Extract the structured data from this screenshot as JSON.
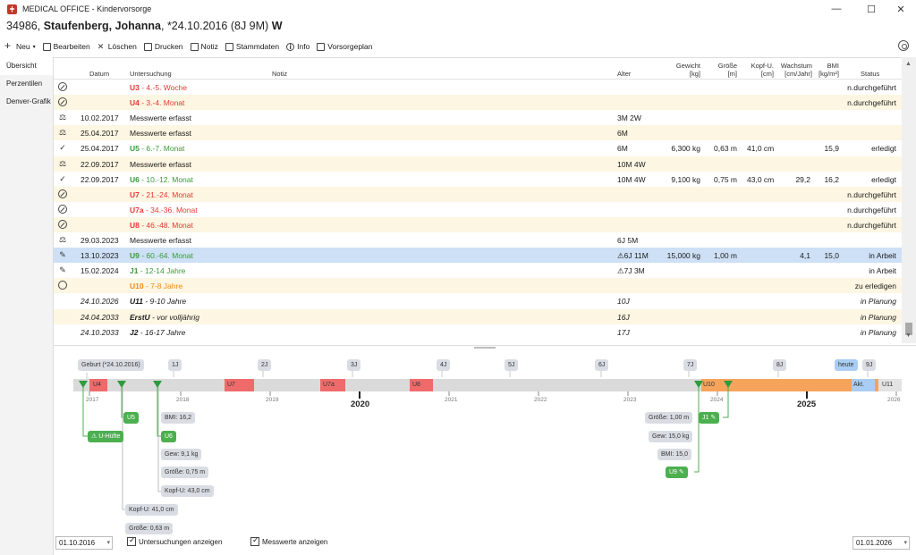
{
  "window": {
    "title": "MEDICAL OFFICE - Kindervorsorge",
    "min": "—",
    "max": "☐",
    "close": "✕"
  },
  "patient": {
    "id": "34986,",
    "name": "Staufenberg, Johanna",
    "dob": ", *24.10.2016 (8J 9M)",
    "sex": "W"
  },
  "toolbar": {
    "neu": "Neu",
    "bearbeiten": "Bearbeiten",
    "loeschen": "Löschen",
    "drucken": "Drucken",
    "notiz": "Notiz",
    "stammdaten": "Stammdaten",
    "info": "Info",
    "vorsorgeplan": "Vorsorgeplan"
  },
  "nav": {
    "uebersicht": "Übersicht",
    "perzentilen": "Perzentilen",
    "denver": "Denver-Grafik"
  },
  "table": {
    "headers": {
      "datum": "Datum",
      "untersuchung": "Untersuchung",
      "notiz": "Notiz",
      "alter": "Alter",
      "gewicht": "Gewicht",
      "gewicht_unit": "[kg]",
      "groesse": "Größe",
      "groesse_unit": "[m]",
      "kopf": "Kopf-U.",
      "kopf_unit": "[cm]",
      "wachstum": "Wachstum",
      "wachstum_unit": "[cm/Jahr]",
      "bmi": "BMI",
      "bmi_unit": "[kg/m²]",
      "status": "Status"
    },
    "rows": [
      {
        "icon": "ban",
        "datum": "",
        "code": "U3",
        "range": " - 4.-5. Woche",
        "color": "red",
        "alter": "",
        "gewicht": "",
        "groesse": "",
        "kopf": "",
        "wachstum": "",
        "bmi": "",
        "status": "n.durchgeführt",
        "alt": false
      },
      {
        "icon": "ban",
        "datum": "",
        "code": "U4",
        "range": " - 3.-4. Monat",
        "color": "red",
        "alter": "",
        "gewicht": "",
        "groesse": "",
        "kopf": "",
        "wachstum": "",
        "bmi": "",
        "status": "n.durchgeführt",
        "alt": true
      },
      {
        "icon": "scale",
        "datum": "10.02.2017",
        "code": "",
        "range": "Messwerte erfasst",
        "color": "",
        "alter": "3M 2W",
        "gewicht": "",
        "groesse": "",
        "kopf": "",
        "wachstum": "",
        "bmi": "",
        "status": "",
        "alt": false
      },
      {
        "icon": "scale",
        "datum": "25.04.2017",
        "code": "",
        "range": "Messwerte erfasst",
        "color": "",
        "alter": "6M",
        "gewicht": "",
        "groesse": "",
        "kopf": "",
        "wachstum": "",
        "bmi": "",
        "status": "",
        "alt": true
      },
      {
        "icon": "check",
        "datum": "25.04.2017",
        "code": "U5",
        "range": " - 6.-7. Monat",
        "color": "green",
        "alter": "6M",
        "gewicht": "6,300 kg",
        "groesse": "0,63 m",
        "kopf": "41,0 cm",
        "wachstum": "",
        "bmi": "15,9",
        "status": "erledigt",
        "alt": false
      },
      {
        "icon": "scale",
        "datum": "22.09.2017",
        "code": "",
        "range": "Messwerte erfasst",
        "color": "",
        "alter": "10M 4W",
        "gewicht": "",
        "groesse": "",
        "kopf": "",
        "wachstum": "",
        "bmi": "",
        "status": "",
        "alt": true
      },
      {
        "icon": "check",
        "datum": "22.09.2017",
        "code": "U6",
        "range": " - 10.-12. Monat",
        "color": "green",
        "alter": "10M 4W",
        "gewicht": "9,100 kg",
        "groesse": "0,75 m",
        "kopf": "43,0 cm",
        "wachstum": "29,2",
        "bmi": "16,2",
        "status": "erledigt",
        "alt": false
      },
      {
        "icon": "ban",
        "datum": "",
        "code": "U7",
        "range": " - 21.-24. Monat",
        "color": "red",
        "alter": "",
        "gewicht": "",
        "groesse": "",
        "kopf": "",
        "wachstum": "",
        "bmi": "",
        "status": "n.durchgeführt",
        "alt": true
      },
      {
        "icon": "ban",
        "datum": "",
        "code": "U7a",
        "range": " - 34.-36. Monat",
        "color": "red",
        "alter": "",
        "gewicht": "",
        "groesse": "",
        "kopf": "",
        "wachstum": "",
        "bmi": "",
        "status": "n.durchgeführt",
        "alt": false
      },
      {
        "icon": "ban",
        "datum": "",
        "code": "U8",
        "range": " - 46.-48. Monat",
        "color": "red",
        "alter": "",
        "gewicht": "",
        "groesse": "",
        "kopf": "",
        "wachstum": "",
        "bmi": "",
        "status": "n.durchgeführt",
        "alt": true
      },
      {
        "icon": "scale",
        "datum": "29.03.2023",
        "code": "",
        "range": "Messwerte erfasst",
        "color": "",
        "alter": "6J 5M",
        "gewicht": "",
        "groesse": "",
        "kopf": "",
        "wachstum": "",
        "bmi": "",
        "status": "",
        "alt": false
      },
      {
        "icon": "edit",
        "datum": "13.10.2023",
        "code": "U9",
        "range": " - 60.-64. Monat",
        "color": "green",
        "alter": "⚠6J 11M",
        "gewicht": "15,000 kg",
        "groesse": "1,00 m",
        "kopf": "",
        "wachstum": "4,1",
        "bmi": "15,0",
        "status": "in Arbeit",
        "alt": false,
        "sel": true
      },
      {
        "icon": "edit",
        "datum": "15.02.2024",
        "code": "J1",
        "range": " - 12-14 Jahre",
        "color": "green",
        "alter": "⚠7J 3M",
        "gewicht": "",
        "groesse": "",
        "kopf": "",
        "wachstum": "",
        "bmi": "",
        "status": "in Arbeit",
        "alt": false
      },
      {
        "icon": "clock",
        "datum": "",
        "code": "U10",
        "range": " - 7-8 Jahre",
        "color": "orange",
        "alter": "",
        "gewicht": "",
        "groesse": "",
        "kopf": "",
        "wachstum": "",
        "bmi": "",
        "status": "zu erledigen",
        "alt": true
      },
      {
        "icon": "",
        "datum": "24.10.2026",
        "code": "U11",
        "range": " - 9-10 Jahre",
        "color": "italic",
        "alter": "10J",
        "gewicht": "",
        "groesse": "",
        "kopf": "",
        "wachstum": "",
        "bmi": "",
        "status": "in Planung",
        "alt": false
      },
      {
        "icon": "",
        "datum": "24.04.2033",
        "code": "ErstU",
        "range": " - vor volljährig",
        "color": "italic",
        "alter": "16J",
        "gewicht": "",
        "groesse": "",
        "kopf": "",
        "wachstum": "",
        "bmi": "",
        "status": "in Planung",
        "alt": true
      },
      {
        "icon": "",
        "datum": "24.10.2033",
        "code": "J2",
        "range": " - 16-17 Jahre",
        "color": "italic",
        "alter": "17J",
        "gewicht": "",
        "groesse": "",
        "kopf": "",
        "wachstum": "",
        "bmi": "",
        "status": "in Planung",
        "alt": false
      }
    ]
  },
  "timeline": {
    "geburt": "Geburt (*24.10.2016)",
    "ages": [
      "1J",
      "2J",
      "3J",
      "4J",
      "5J",
      "6J",
      "7J",
      "8J",
      "9J"
    ],
    "heute": "heute",
    "years": [
      "2017",
      "2018",
      "2019",
      "2021",
      "2022",
      "2023",
      "2024",
      "2026"
    ],
    "big_years": [
      "2020",
      "2025"
    ],
    "bars": [
      "U4",
      "U7",
      "U7a",
      "U8",
      "U10",
      "Akt.",
      "U11"
    ],
    "events": {
      "u5": "U5",
      "uhuefte": "U-Hüfte",
      "u6": "U6",
      "bmi162": "BMI: 16,2",
      "gew91": "Gew: 9,1 kg",
      "groesse075": "Größe: 0,75 m",
      "kopf43": "Kopf-U: 43,0 cm",
      "kopf41": "Kopf-U: 41,0 cm",
      "groesse063": "Größe: 0,63 m",
      "j1": "J1",
      "groesse100": "Größe: 1,00 m",
      "gew150": "Gew: 15,0 kg",
      "bmi150": "BMI: 15,0",
      "u9": "U9"
    }
  },
  "footer": {
    "date_from": "01.10.2016",
    "date_to": "01.01.2026",
    "chk_untersuchungen": "Untersuchungen anzeigen",
    "chk_messwerte": "Messwerte anzeigen"
  }
}
